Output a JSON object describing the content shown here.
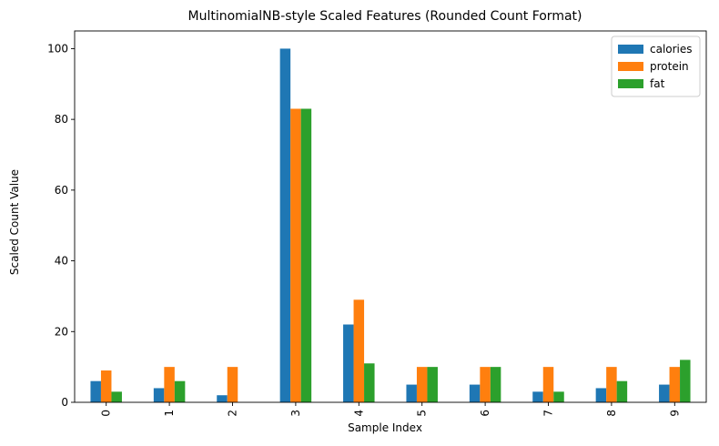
{
  "chart_data": {
    "type": "bar",
    "title": "MultinomialNB-style Scaled Features (Rounded Count Format)",
    "xlabel": "Sample Index",
    "ylabel": "Scaled Count Value",
    "categories": [
      "0",
      "1",
      "2",
      "3",
      "4",
      "5",
      "6",
      "7",
      "8",
      "9"
    ],
    "series": [
      {
        "name": "calories",
        "color": "#1f77b4",
        "values": [
          6,
          4,
          2,
          100,
          22,
          5,
          5,
          3,
          4,
          5
        ]
      },
      {
        "name": "protein",
        "color": "#ff7f0e",
        "values": [
          9,
          10,
          10,
          83,
          29,
          10,
          10,
          10,
          10,
          10
        ]
      },
      {
        "name": "fat",
        "color": "#2ca02c",
        "values": [
          3,
          6,
          0,
          83,
          11,
          10,
          10,
          3,
          6,
          12
        ]
      }
    ],
    "ylim": [
      0,
      105
    ],
    "yticks": [
      0,
      20,
      40,
      60,
      80,
      100
    ],
    "grid": false,
    "legend_position": "top-right"
  }
}
